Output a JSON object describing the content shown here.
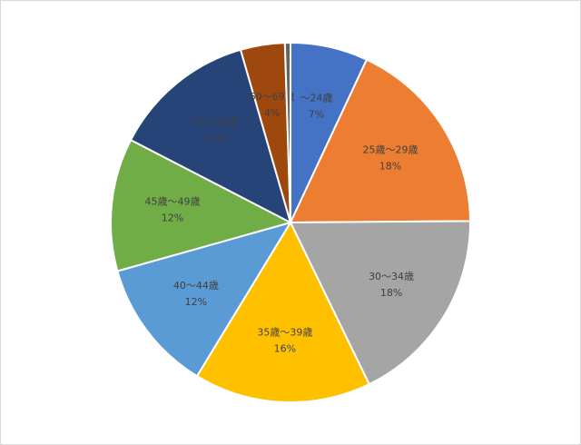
{
  "chart_data": {
    "type": "pie",
    "categories": [
      "～24歳",
      "25歳～29歳",
      "30～34歳",
      "35歳～39歳",
      "40～44歳",
      "45歳～49歳",
      "50～59歳",
      "60～69歳",
      null
    ],
    "values": [
      7,
      18,
      18,
      16,
      12,
      12,
      13,
      4,
      0.5
    ],
    "value_labels": [
      "7%",
      "18%",
      "18%",
      "16%",
      "12%",
      "12%",
      "13%",
      "4%",
      null
    ],
    "colors": [
      "#4472c4",
      "#ed7d31",
      "#a5a5a5",
      "#ffc000",
      "#5b9bd5",
      "#70ad47",
      "#264478",
      "#9e480e",
      "#636363"
    ]
  }
}
